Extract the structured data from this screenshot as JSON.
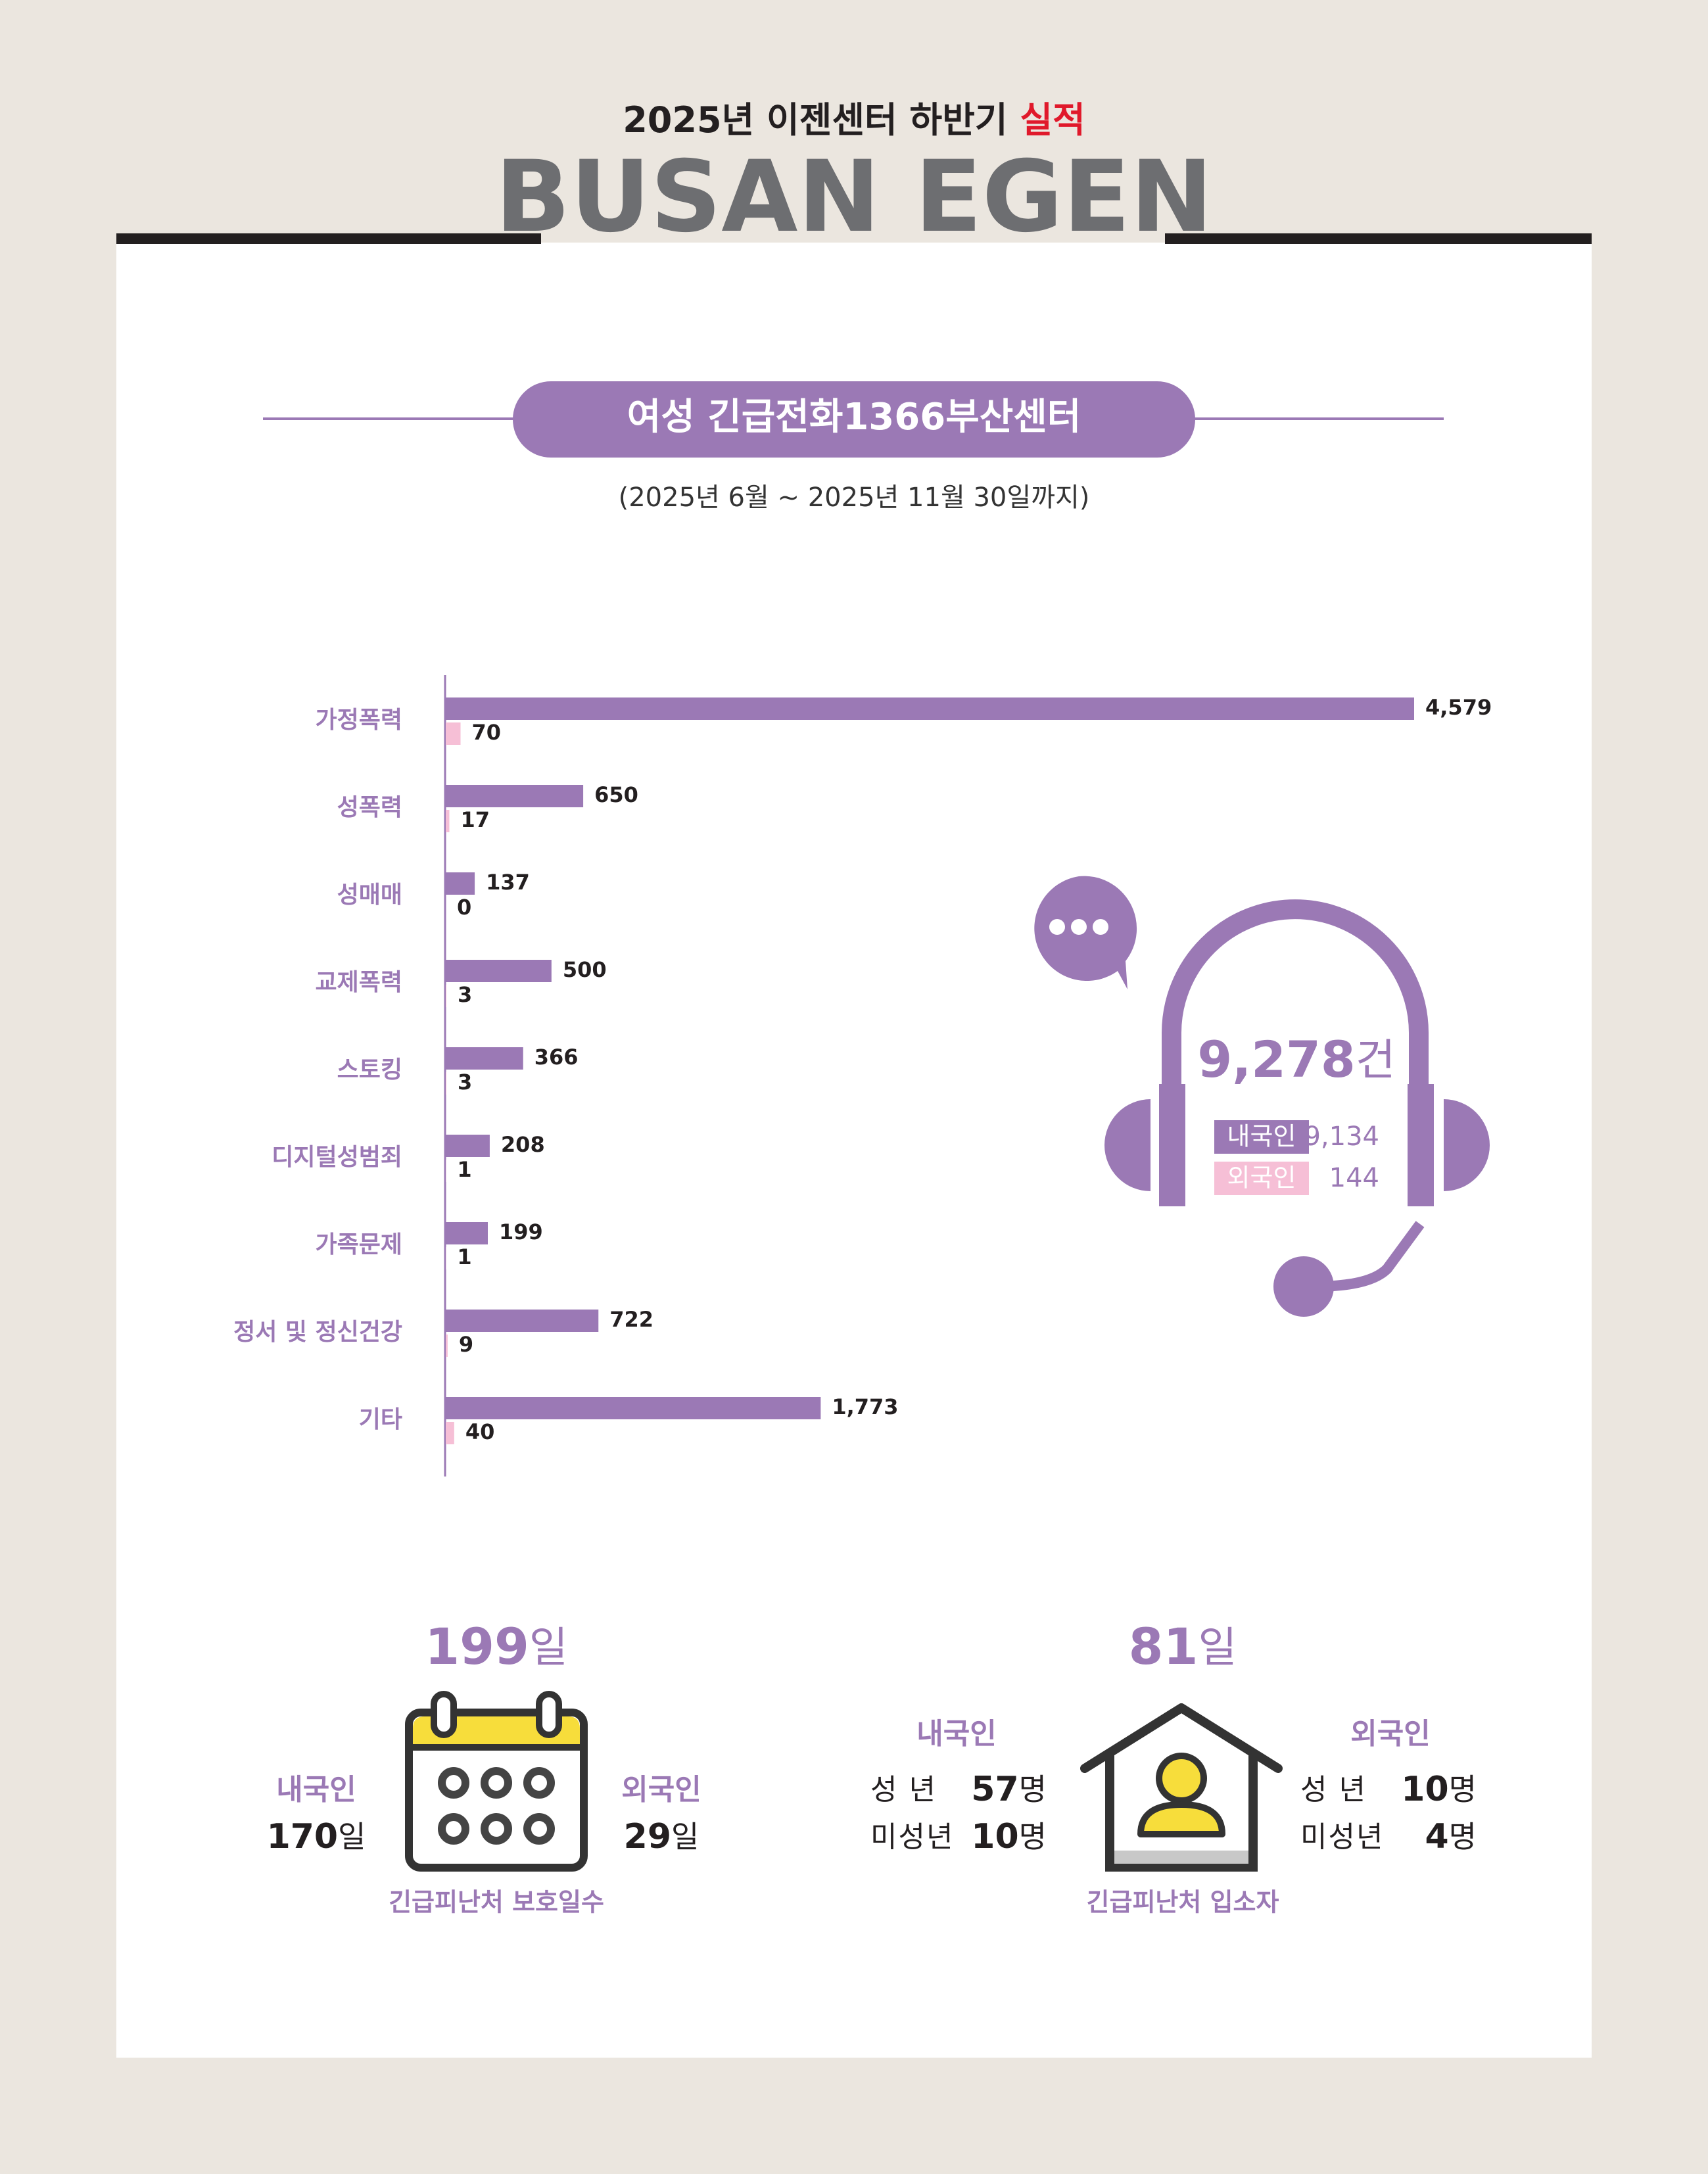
{
  "header": {
    "title_prefix": "2025년 이젠센터 하반기",
    "title_highlight": "실적",
    "brand": "BUSAN EGEN"
  },
  "section": {
    "title": "여성 긴급전화1366부산센터",
    "period": "(2025년 6월 ~ 2025년 11월 30일까지)"
  },
  "chart_data": {
    "type": "bar",
    "orientation": "horizontal",
    "categories": [
      "가정폭력",
      "성폭력",
      "성매매",
      "교제폭력",
      "스토킹",
      "디지털성범죄",
      "가족문제",
      "정서 및 정신건강",
      "기타"
    ],
    "series": [
      {
        "name": "내국인",
        "color": "#9b79b5",
        "values": [
          4579,
          650,
          137,
          500,
          366,
          208,
          199,
          722,
          1773
        ],
        "value_labels": [
          "4,579",
          "650",
          "137",
          "500",
          "366",
          "208",
          "199",
          "722",
          "1,773"
        ]
      },
      {
        "name": "외국인",
        "color": "#f6bfd6",
        "values": [
          70,
          17,
          0,
          3,
          3,
          1,
          1,
          9,
          40
        ],
        "value_labels": [
          "70",
          "17",
          "0",
          "3",
          "3",
          "1",
          "1",
          "9",
          "40"
        ]
      }
    ]
  },
  "summary": {
    "total": "9,278",
    "unit": "건",
    "series_totals": [
      "9,134",
      "144"
    ]
  },
  "shelter_days": {
    "total": "199",
    "unit": "일",
    "domestic": {
      "label": "내국인",
      "value": "170",
      "unit": "일"
    },
    "foreign": {
      "label": "외국인",
      "value": "29",
      "unit": "일"
    },
    "caption": "긴급피난처 보호일수"
  },
  "shelter_residents": {
    "total": "81",
    "unit": "일",
    "domestic": {
      "label": "내국인",
      "rows": [
        {
          "label": "성 년",
          "value": "57",
          "unit": "명"
        },
        {
          "label": "미성년",
          "value": "10",
          "unit": "명"
        }
      ]
    },
    "foreign": {
      "label": "외국인",
      "rows": [
        {
          "label": "성 년",
          "value": "10",
          "unit": "명"
        },
        {
          "label": "미성년",
          "value": "4",
          "unit": "명"
        }
      ]
    },
    "caption": "긴급피난처 입소자"
  }
}
